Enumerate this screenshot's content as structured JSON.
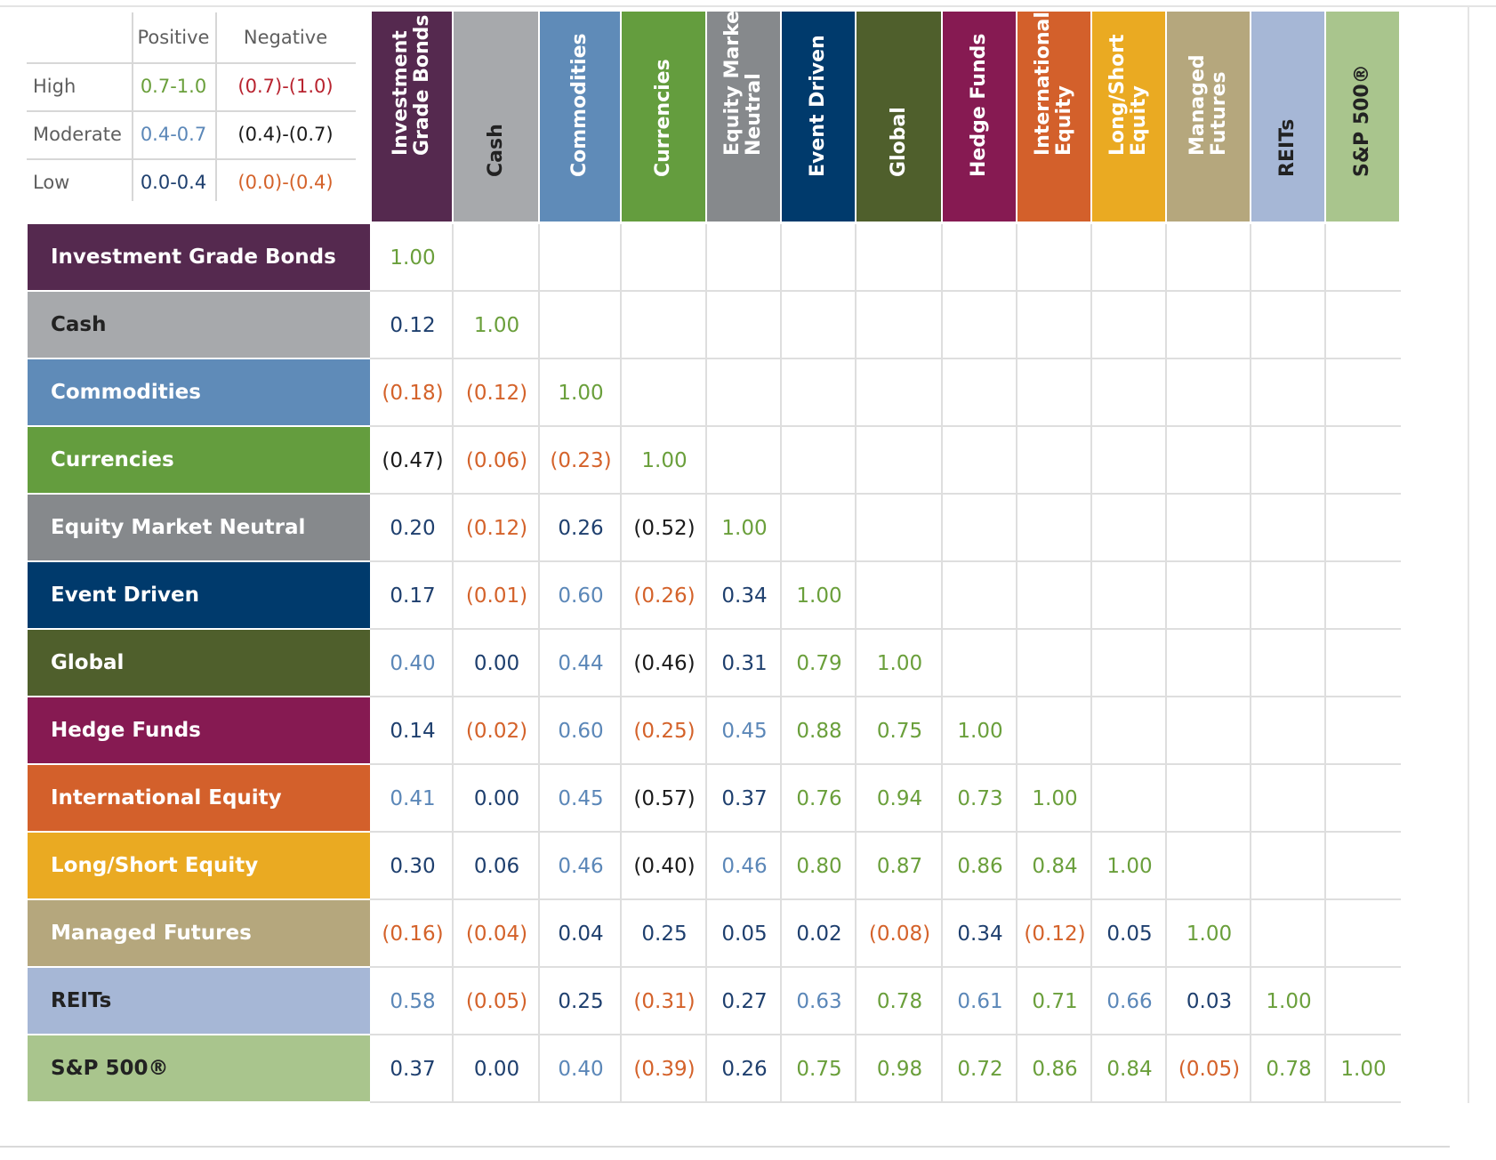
{
  "legend": {
    "columns": [
      "Positive",
      "Negative"
    ],
    "rows": [
      {
        "label": "High",
        "positive": "0.7-1.0",
        "negative": "(0.7)-(1.0)"
      },
      {
        "label": "Moderate",
        "positive": "0.4-0.7",
        "negative": "(0.4)-(0.7)"
      },
      {
        "label": "Low",
        "positive": "0.0-0.4",
        "negative": "(0.0)-(0.4)"
      }
    ],
    "colors": {
      "high_pos": "#6a9f3b",
      "mod_pos": "#5b87b8",
      "low_pos": "#1e3f6e",
      "high_neg": "#b8232f",
      "mod_neg": "#1a1a1a",
      "low_neg": "#d4622a"
    }
  },
  "chart_data": {
    "type": "table",
    "assets": [
      {
        "header": "Investment\nGrade Bonds",
        "label": "Investment Grade Bonds",
        "color": "#55294f",
        "text_dark": false
      },
      {
        "header": "Cash",
        "label": "Cash",
        "color": "#a7a9ac",
        "text_dark": true
      },
      {
        "header": "Commodities",
        "label": "Commodities",
        "color": "#5f8bb8",
        "text_dark": false
      },
      {
        "header": "Currencies",
        "label": "Currencies",
        "color": "#649d3e",
        "text_dark": false
      },
      {
        "header": "Equity Market\nNeutral",
        "label": "Equity Market Neutral",
        "color": "#86898c",
        "text_dark": false
      },
      {
        "header": "Event Driven",
        "label": "Event Driven",
        "color": "#003a6c",
        "text_dark": false
      },
      {
        "header": "Global",
        "label": "Global",
        "color": "#4f5f2c",
        "text_dark": false
      },
      {
        "header": "Hedge Funds",
        "label": "Hedge Funds",
        "color": "#861a52",
        "text_dark": false
      },
      {
        "header": "International\nEquity",
        "label": "International Equity",
        "color": "#d3602b",
        "text_dark": false
      },
      {
        "header": "Long/Short\nEquity",
        "label": "Long/Short Equity",
        "color": "#eaaa22",
        "text_dark": false
      },
      {
        "header": "Managed\nFutures",
        "label": "Managed Futures",
        "color": "#b5a77d",
        "text_dark": false
      },
      {
        "header": "REITs",
        "label": "REITs",
        "color": "#a6b7d6",
        "text_dark": true
      },
      {
        "header": "S&P 500®",
        "label": "S&P 500®",
        "color": "#a9c58d",
        "text_dark": true
      }
    ],
    "matrix": [
      [
        1.0
      ],
      [
        0.12,
        1.0
      ],
      [
        -0.18,
        -0.12,
        1.0
      ],
      [
        -0.47,
        -0.06,
        -0.23,
        1.0
      ],
      [
        0.2,
        -0.12,
        0.26,
        -0.52,
        1.0
      ],
      [
        0.17,
        -0.01,
        0.6,
        -0.26,
        0.34,
        1.0
      ],
      [
        0.4,
        0.0,
        0.44,
        -0.46,
        0.31,
        0.79,
        1.0
      ],
      [
        0.14,
        -0.02,
        0.6,
        -0.25,
        0.45,
        0.88,
        0.75,
        1.0
      ],
      [
        0.41,
        0.0,
        0.45,
        -0.57,
        0.37,
        0.76,
        0.94,
        0.73,
        1.0
      ],
      [
        0.3,
        0.06,
        0.46,
        -0.4,
        0.46,
        0.8,
        0.87,
        0.86,
        0.84,
        1.0
      ],
      [
        -0.16,
        -0.04,
        0.04,
        0.25,
        0.05,
        0.02,
        -0.08,
        0.34,
        -0.12,
        0.05,
        1.0
      ],
      [
        0.58,
        -0.05,
        0.25,
        -0.31,
        0.27,
        0.63,
        0.78,
        0.61,
        0.71,
        0.66,
        0.03,
        1.0
      ],
      [
        0.37,
        0.0,
        0.4,
        -0.39,
        0.26,
        0.75,
        0.98,
        0.72,
        0.86,
        0.84,
        -0.05,
        0.78,
        1.0
      ]
    ]
  }
}
